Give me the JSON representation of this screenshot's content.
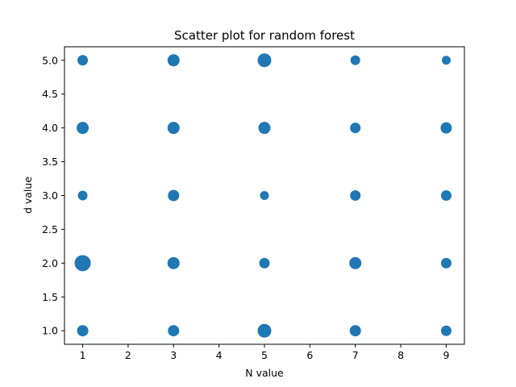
{
  "chart_data": {
    "type": "scatter",
    "title": "Scatter plot for random forest",
    "xlabel": "N value",
    "ylabel": "d value",
    "xlim": [
      0.6,
      9.4
    ],
    "ylim": [
      0.8,
      5.2
    ],
    "xticks": [
      1,
      2,
      3,
      4,
      5,
      6,
      7,
      8,
      9
    ],
    "yticks": [
      1.0,
      1.5,
      2.0,
      2.5,
      3.0,
      3.5,
      4.0,
      4.5,
      5.0
    ],
    "ytick_labels": [
      "1.0",
      "1.5",
      "2.0",
      "2.5",
      "3.0",
      "3.5",
      "4.0",
      "4.5",
      "5.0"
    ],
    "color": "#1f77b4",
    "grid": false,
    "points": [
      {
        "x": 1,
        "y": 1,
        "size": 7
      },
      {
        "x": 1,
        "y": 2,
        "size": 10
      },
      {
        "x": 1,
        "y": 3,
        "size": 6
      },
      {
        "x": 1,
        "y": 4,
        "size": 7.5
      },
      {
        "x": 1,
        "y": 5,
        "size": 6.5
      },
      {
        "x": 3,
        "y": 1,
        "size": 7
      },
      {
        "x": 3,
        "y": 2,
        "size": 7.5
      },
      {
        "x": 3,
        "y": 3,
        "size": 7
      },
      {
        "x": 3,
        "y": 4,
        "size": 7.5
      },
      {
        "x": 3,
        "y": 5,
        "size": 7.5
      },
      {
        "x": 5,
        "y": 1,
        "size": 8.5
      },
      {
        "x": 5,
        "y": 2,
        "size": 6.5
      },
      {
        "x": 5,
        "y": 3,
        "size": 5.5
      },
      {
        "x": 5,
        "y": 4,
        "size": 7.5
      },
      {
        "x": 5,
        "y": 5,
        "size": 8.5
      },
      {
        "x": 7,
        "y": 1,
        "size": 7
      },
      {
        "x": 7,
        "y": 2,
        "size": 7.5
      },
      {
        "x": 7,
        "y": 3,
        "size": 6.5
      },
      {
        "x": 7,
        "y": 4,
        "size": 6.5
      },
      {
        "x": 7,
        "y": 5,
        "size": 6
      },
      {
        "x": 9,
        "y": 1,
        "size": 6.5
      },
      {
        "x": 9,
        "y": 2,
        "size": 6.5
      },
      {
        "x": 9,
        "y": 3,
        "size": 6.5
      },
      {
        "x": 9,
        "y": 4,
        "size": 7
      },
      {
        "x": 9,
        "y": 5,
        "size": 5.5
      }
    ]
  }
}
